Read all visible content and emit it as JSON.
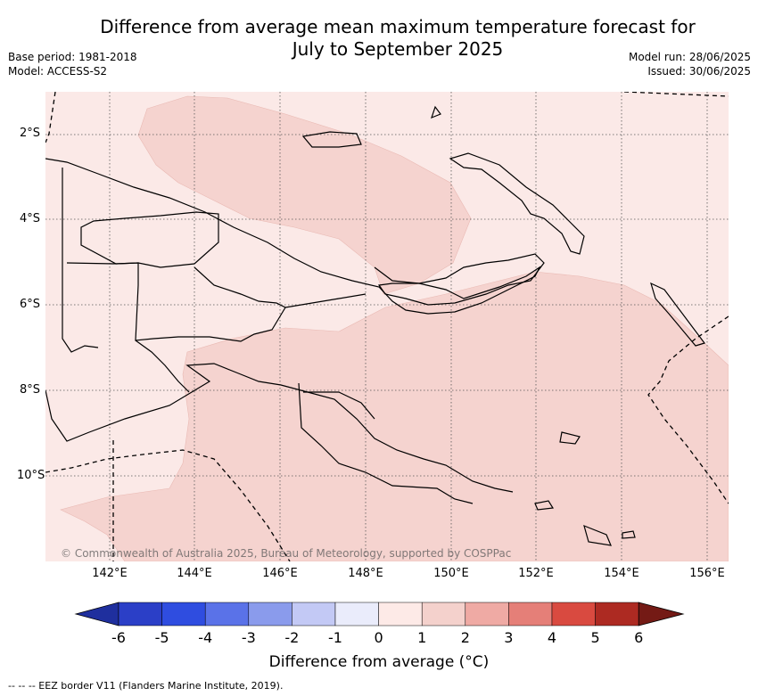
{
  "title": "Difference from average mean maximum temperature forecast for\nJuly to September 2025",
  "meta": {
    "base_period": "Base period: 1981-2018",
    "model": "Model: ACCESS-S2",
    "model_run": "Model run: 28/06/2025",
    "issued": "Issued: 30/06/2025"
  },
  "map": {
    "region": "Papua New Guinea",
    "credit": "© Commonwealth of Australia 2025, Bureau of Meteorology, supported by COSPPac",
    "lat_ticks": [
      "2°S",
      "4°S",
      "6°S",
      "8°S",
      "10°S"
    ],
    "lon_ticks": [
      "142°E",
      "144°E",
      "146°E",
      "148°E",
      "150°E",
      "152°E",
      "154°E",
      "156°E"
    ],
    "shading": {
      "colour_light": "#fbe9e7",
      "colour_medium": "#f5d3cf",
      "light_band": "0 to 1 °C",
      "medium_band": "1 to 2 °C"
    }
  },
  "colorbar": {
    "title": "Difference from average (°C)",
    "labels": [
      "-6",
      "-5",
      "-4",
      "-3",
      "-2",
      "-1",
      "0",
      "1",
      "2",
      "3",
      "4",
      "5",
      "6"
    ],
    "colors": [
      "#1f2f9e",
      "#2b3fc7",
      "#2f4de0",
      "#5a72e8",
      "#8a9bec",
      "#c3c9f5",
      "#eaecfb",
      "#fdeae7",
      "#f4d1cc",
      "#efaaa4",
      "#e57f78",
      "#d94a40",
      "#ad2a22",
      "#741a15"
    ]
  },
  "footnote": "--  --  -- EEZ border V11 (Flanders Marine Institute, 2019)."
}
